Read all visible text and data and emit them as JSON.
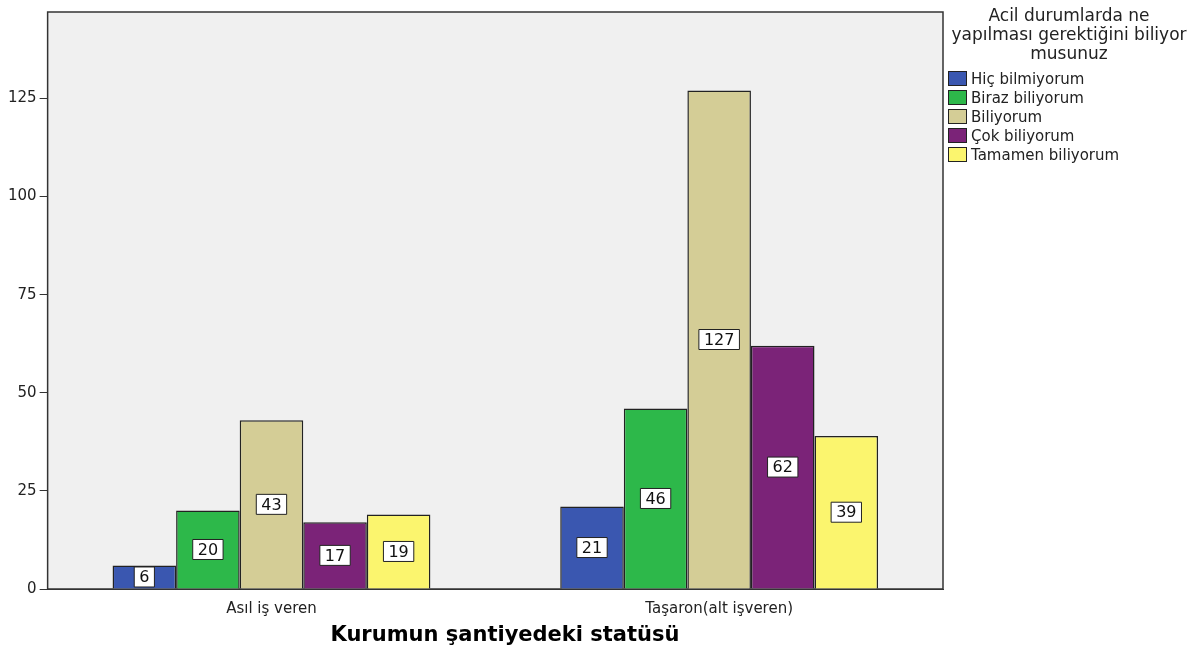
{
  "chart_data": {
    "type": "bar",
    "xlabel": "Kurumun şantiyedeki statüsü",
    "legend_title": "Acil durumlarda ne yapılması gerektiğini biliyor musunuz",
    "categories": [
      "Asıl iş veren",
      "Taşaron(alt işveren)"
    ],
    "series": [
      {
        "name": "Hiç bilmiyorum",
        "color": "#3a57b0",
        "values": [
          6,
          21
        ]
      },
      {
        "name": "Biraz biliyorum",
        "color": "#2db84a",
        "values": [
          20,
          46
        ]
      },
      {
        "name": "Biliyorum",
        "color": "#d4cd96",
        "values": [
          43,
          127
        ]
      },
      {
        "name": "Çok biliyorum",
        "color": "#7b2378",
        "values": [
          17,
          62
        ]
      },
      {
        "name": "Tamamen biliyorum",
        "color": "#fbf56e",
        "values": [
          19,
          39
        ]
      }
    ],
    "ylim": [
      0,
      147
    ],
    "yticks": [
      0,
      25,
      50,
      75,
      100,
      125
    ],
    "grid": false,
    "legend": "right",
    "data_labels": true
  }
}
